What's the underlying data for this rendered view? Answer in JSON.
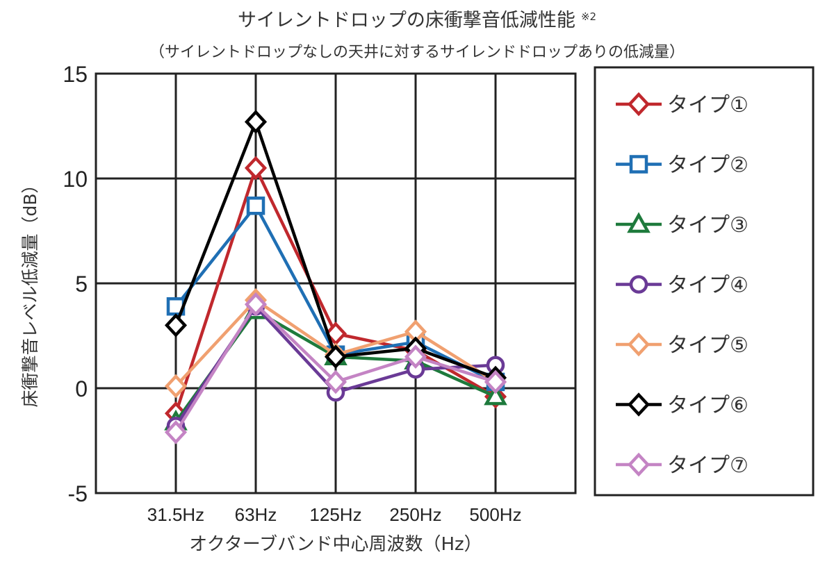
{
  "chart_data": {
    "type": "line",
    "title": "サイレントドロップの床衝撃音低減性能",
    "title_note": "※2",
    "subtitle": "（サイレントドロップなしの天井に対するサイレンドドロップありの低減量）",
    "xlabel": "オクターブバンド中心周波数（Hz）",
    "ylabel": "床衝撃音レベル低減量（dB）",
    "categories": [
      "31.5Hz",
      "63Hz",
      "125Hz",
      "250Hz",
      "500Hz"
    ],
    "ylim": [
      -5,
      15
    ],
    "yticks": [
      -5,
      0,
      5,
      10,
      15
    ],
    "ytick_labels": [
      "-5",
      "0",
      "5",
      "10",
      "15"
    ],
    "grid": true,
    "legend_position": "right",
    "series": [
      {
        "name": "タイプ①",
        "color": "#c0282d",
        "marker": "diamond",
        "values": [
          -1.2,
          10.5,
          2.6,
          1.8,
          -0.4
        ]
      },
      {
        "name": "タイプ②",
        "color": "#1f6fb4",
        "marker": "square",
        "values": [
          3.9,
          8.7,
          1.6,
          2.2,
          0.3
        ]
      },
      {
        "name": "タイプ③",
        "color": "#1e7a3c",
        "marker": "triangle",
        "values": [
          -1.6,
          3.7,
          1.5,
          1.3,
          -0.4
        ]
      },
      {
        "name": "タイプ④",
        "color": "#6a3a96",
        "marker": "circle",
        "values": [
          -1.8,
          3.9,
          -0.2,
          0.9,
          1.1
        ]
      },
      {
        "name": "タイプ⑤",
        "color": "#f0a070",
        "marker": "diamond",
        "values": [
          0.1,
          4.2,
          1.6,
          2.7,
          0.3
        ]
      },
      {
        "name": "タイプ⑥",
        "color": "#000000",
        "marker": "diamond",
        "values": [
          3.0,
          12.7,
          1.5,
          1.9,
          0.5
        ]
      },
      {
        "name": "タイプ⑦",
        "color": "#c484c4",
        "marker": "diamond",
        "values": [
          -2.1,
          4.0,
          0.3,
          1.5,
          0.3
        ]
      }
    ]
  }
}
